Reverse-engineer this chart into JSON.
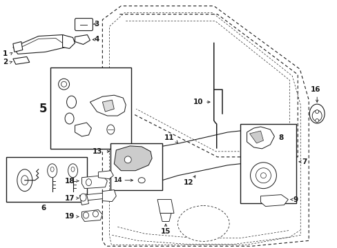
{
  "bg_color": "#ffffff",
  "line_color": "#1a1a1a",
  "gray_color": "#888888",
  "light_gray": "#cccccc",
  "parts": {
    "door_outline_outer": {
      "x": [
        0.305,
        0.305,
        0.34,
        0.625,
        0.87,
        0.89,
        0.89,
        0.72,
        0.53,
        0.36,
        0.315,
        0.305
      ],
      "y": [
        0.08,
        0.97,
        0.99,
        0.99,
        0.86,
        0.79,
        0.085,
        0.025,
        0.01,
        0.01,
        0.035,
        0.08
      ]
    },
    "door_outline_inner": {
      "x": [
        0.32,
        0.32,
        0.35,
        0.62,
        0.855,
        0.872,
        0.872,
        0.71,
        0.525,
        0.365,
        0.325,
        0.32
      ],
      "y": [
        0.092,
        0.955,
        0.975,
        0.975,
        0.848,
        0.778,
        0.095,
        0.038,
        0.022,
        0.022,
        0.045,
        0.092
      ]
    },
    "window_outer": {
      "x": [
        0.345,
        0.63,
        0.855,
        0.855,
        0.63,
        0.38
      ],
      "y": [
        0.972,
        0.972,
        0.84,
        0.64,
        0.61,
        0.74
      ]
    },
    "window_inner": {
      "x": [
        0.358,
        0.622,
        0.84,
        0.84,
        0.622,
        0.388
      ],
      "y": [
        0.958,
        0.958,
        0.828,
        0.652,
        0.622,
        0.73
      ]
    }
  },
  "label_fontsize": 7.5,
  "small_fontsize": 6.5
}
